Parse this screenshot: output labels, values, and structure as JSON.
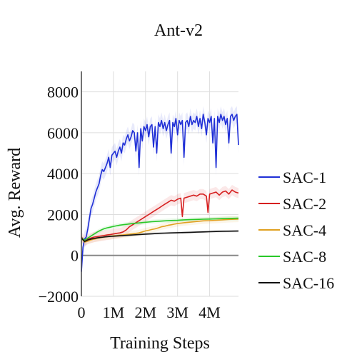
{
  "chart_data": {
    "type": "line",
    "title": "Ant-v2",
    "xlabel": "Training Steps",
    "ylabel": "Avg. Reward",
    "xlim": [
      0,
      4900000
    ],
    "ylim": [
      -2000,
      9000
    ],
    "grid": true,
    "legend_position": "right",
    "x_ticks": [
      {
        "value": 0,
        "label": "0"
      },
      {
        "value": 1000000,
        "label": "1M"
      },
      {
        "value": 2000000,
        "label": "2M"
      },
      {
        "value": 3000000,
        "label": "3M"
      },
      {
        "value": 4000000,
        "label": "4M"
      }
    ],
    "y_ticks": [
      {
        "value": -2000,
        "label": "−2000"
      },
      {
        "value": 0,
        "label": "0"
      },
      {
        "value": 2000,
        "label": "2000"
      },
      {
        "value": 4000,
        "label": "4000"
      },
      {
        "value": 6000,
        "label": "6000"
      },
      {
        "value": 8000,
        "label": "8000"
      }
    ],
    "series": [
      {
        "name": "SAC-1",
        "color": "#1f2fd6",
        "band": 400,
        "points": [
          [
            0,
            -800
          ],
          [
            50000,
            400
          ],
          [
            100000,
            800
          ],
          [
            150000,
            900
          ],
          [
            200000,
            1300
          ],
          [
            250000,
            1800
          ],
          [
            300000,
            2300
          ],
          [
            350000,
            2500
          ],
          [
            400000,
            2800
          ],
          [
            450000,
            3100
          ],
          [
            500000,
            3300
          ],
          [
            550000,
            3500
          ],
          [
            600000,
            3900
          ],
          [
            650000,
            4200
          ],
          [
            700000,
            4100
          ],
          [
            750000,
            4300
          ],
          [
            800000,
            4500
          ],
          [
            850000,
            4800
          ],
          [
            900000,
            4300
          ],
          [
            950000,
            4900
          ],
          [
            1000000,
            5000
          ],
          [
            1050000,
            5100
          ],
          [
            1100000,
            4800
          ],
          [
            1150000,
            5100
          ],
          [
            1200000,
            5300
          ],
          [
            1250000,
            5000
          ],
          [
            1300000,
            5500
          ],
          [
            1350000,
            5400
          ],
          [
            1400000,
            5700
          ],
          [
            1450000,
            5900
          ],
          [
            1500000,
            5600
          ],
          [
            1550000,
            5800
          ],
          [
            1600000,
            6100
          ],
          [
            1650000,
            6000
          ],
          [
            1700000,
            5100
          ],
          [
            1750000,
            6000
          ],
          [
            1800000,
            4300
          ],
          [
            1850000,
            6200
          ],
          [
            1900000,
            5600
          ],
          [
            1950000,
            6300
          ],
          [
            2000000,
            6100
          ],
          [
            2050000,
            6400
          ],
          [
            2100000,
            5800
          ],
          [
            2150000,
            6300
          ],
          [
            2200000,
            6400
          ],
          [
            2250000,
            5300
          ],
          [
            2300000,
            6300
          ],
          [
            2350000,
            5000
          ],
          [
            2400000,
            6500
          ],
          [
            2450000,
            6300
          ],
          [
            2500000,
            6600
          ],
          [
            2550000,
            6200
          ],
          [
            2600000,
            6500
          ],
          [
            2650000,
            6100
          ],
          [
            2700000,
            6400
          ],
          [
            2750000,
            6600
          ],
          [
            2800000,
            5000
          ],
          [
            2850000,
            6500
          ],
          [
            2900000,
            6300
          ],
          [
            2950000,
            6700
          ],
          [
            3000000,
            5900
          ],
          [
            3050000,
            6600
          ],
          [
            3100000,
            6400
          ],
          [
            3150000,
            6600
          ],
          [
            3200000,
            4800
          ],
          [
            3250000,
            6500
          ],
          [
            3300000,
            6600
          ],
          [
            3350000,
            6300
          ],
          [
            3400000,
            6800
          ],
          [
            3450000,
            6400
          ],
          [
            3500000,
            6600
          ],
          [
            3550000,
            6500
          ],
          [
            3600000,
            6800
          ],
          [
            3650000,
            6300
          ],
          [
            3700000,
            6700
          ],
          [
            3750000,
            6200
          ],
          [
            3800000,
            6900
          ],
          [
            3850000,
            6500
          ],
          [
            3900000,
            5900
          ],
          [
            3950000,
            6700
          ],
          [
            4000000,
            6500
          ],
          [
            4050000,
            6800
          ],
          [
            4100000,
            5500
          ],
          [
            4150000,
            6700
          ],
          [
            4200000,
            4300
          ],
          [
            4250000,
            6800
          ],
          [
            4300000,
            6500
          ],
          [
            4350000,
            6900
          ],
          [
            4400000,
            6600
          ],
          [
            4450000,
            6800
          ],
          [
            4500000,
            6400
          ],
          [
            4550000,
            6700
          ],
          [
            4600000,
            5500
          ],
          [
            4650000,
            6800
          ],
          [
            4700000,
            6900
          ],
          [
            4750000,
            6600
          ],
          [
            4800000,
            6800
          ],
          [
            4850000,
            6900
          ],
          [
            4900000,
            5400
          ]
        ]
      },
      {
        "name": "SAC-2",
        "color": "#d62020",
        "band": 250,
        "points": [
          [
            0,
            900
          ],
          [
            100000,
            700
          ],
          [
            200000,
            800
          ],
          [
            300000,
            850
          ],
          [
            400000,
            900
          ],
          [
            500000,
            920
          ],
          [
            600000,
            950
          ],
          [
            700000,
            970
          ],
          [
            800000,
            1000
          ],
          [
            900000,
            1020
          ],
          [
            1000000,
            1050
          ],
          [
            1100000,
            1080
          ],
          [
            1200000,
            1100
          ],
          [
            1300000,
            1150
          ],
          [
            1400000,
            1250
          ],
          [
            1500000,
            1400
          ],
          [
            1600000,
            1500
          ],
          [
            1700000,
            1600
          ],
          [
            1800000,
            1700
          ],
          [
            1900000,
            1800
          ],
          [
            2000000,
            1900
          ],
          [
            2100000,
            2000
          ],
          [
            2200000,
            2100
          ],
          [
            2300000,
            2200
          ],
          [
            2400000,
            2300
          ],
          [
            2500000,
            2400
          ],
          [
            2600000,
            2500
          ],
          [
            2700000,
            2600
          ],
          [
            2800000,
            2700
          ],
          [
            2900000,
            2650
          ],
          [
            3000000,
            2750
          ],
          [
            3100000,
            2800
          ],
          [
            3150000,
            1900
          ],
          [
            3200000,
            2800
          ],
          [
            3300000,
            2850
          ],
          [
            3400000,
            2900
          ],
          [
            3500000,
            2950
          ],
          [
            3600000,
            2900
          ],
          [
            3700000,
            3000
          ],
          [
            3800000,
            3000
          ],
          [
            3900000,
            2900
          ],
          [
            3950000,
            2100
          ],
          [
            4000000,
            3000
          ],
          [
            4100000,
            3050
          ],
          [
            4200000,
            3100
          ],
          [
            4300000,
            2950
          ],
          [
            4400000,
            3100
          ],
          [
            4500000,
            3150
          ],
          [
            4600000,
            3000
          ],
          [
            4700000,
            3200
          ],
          [
            4800000,
            3100
          ],
          [
            4900000,
            3050
          ]
        ]
      },
      {
        "name": "SAC-4",
        "color": "#e0a020",
        "band": 150,
        "points": [
          [
            0,
            850
          ],
          [
            100000,
            650
          ],
          [
            200000,
            700
          ],
          [
            300000,
            760
          ],
          [
            400000,
            800
          ],
          [
            500000,
            840
          ],
          [
            600000,
            870
          ],
          [
            700000,
            900
          ],
          [
            800000,
            920
          ],
          [
            900000,
            940
          ],
          [
            1000000,
            960
          ],
          [
            1100000,
            970
          ],
          [
            1200000,
            990
          ],
          [
            1300000,
            1000
          ],
          [
            1400000,
            1020
          ],
          [
            1500000,
            1040
          ],
          [
            1600000,
            1060
          ],
          [
            1700000,
            1080
          ],
          [
            1800000,
            1100
          ],
          [
            1900000,
            1150
          ],
          [
            2000000,
            1200
          ],
          [
            2100000,
            1230
          ],
          [
            2200000,
            1270
          ],
          [
            2300000,
            1300
          ],
          [
            2400000,
            1350
          ],
          [
            2500000,
            1400
          ],
          [
            2600000,
            1430
          ],
          [
            2700000,
            1470
          ],
          [
            2800000,
            1500
          ],
          [
            2900000,
            1530
          ],
          [
            3000000,
            1560
          ],
          [
            3200000,
            1600
          ],
          [
            3400000,
            1630
          ],
          [
            3600000,
            1660
          ],
          [
            3800000,
            1690
          ],
          [
            4000000,
            1700
          ],
          [
            4200000,
            1720
          ],
          [
            4400000,
            1740
          ],
          [
            4600000,
            1760
          ],
          [
            4900000,
            1780
          ]
        ]
      },
      {
        "name": "SAC-8",
        "color": "#28c828",
        "band": 100,
        "points": [
          [
            0,
            850
          ],
          [
            100000,
            750
          ],
          [
            200000,
            850
          ],
          [
            300000,
            950
          ],
          [
            400000,
            1050
          ],
          [
            500000,
            1150
          ],
          [
            600000,
            1230
          ],
          [
            700000,
            1300
          ],
          [
            800000,
            1350
          ],
          [
            900000,
            1380
          ],
          [
            1000000,
            1420
          ],
          [
            1200000,
            1480
          ],
          [
            1400000,
            1520
          ],
          [
            1600000,
            1560
          ],
          [
            1800000,
            1590
          ],
          [
            2000000,
            1620
          ],
          [
            2200000,
            1650
          ],
          [
            2400000,
            1670
          ],
          [
            2600000,
            1690
          ],
          [
            2800000,
            1710
          ],
          [
            3000000,
            1720
          ],
          [
            3200000,
            1740
          ],
          [
            3400000,
            1750
          ],
          [
            3600000,
            1760
          ],
          [
            3800000,
            1770
          ],
          [
            4000000,
            1780
          ],
          [
            4200000,
            1790
          ],
          [
            4400000,
            1800
          ],
          [
            4600000,
            1810
          ],
          [
            4900000,
            1820
          ]
        ]
      },
      {
        "name": "SAC-16",
        "color": "#111111",
        "band": 60,
        "points": [
          [
            0,
            850
          ],
          [
            100000,
            680
          ],
          [
            200000,
            760
          ],
          [
            300000,
            800
          ],
          [
            400000,
            830
          ],
          [
            500000,
            860
          ],
          [
            600000,
            880
          ],
          [
            700000,
            900
          ],
          [
            800000,
            920
          ],
          [
            900000,
            930
          ],
          [
            1000000,
            940
          ],
          [
            1200000,
            960
          ],
          [
            1400000,
            980
          ],
          [
            1600000,
            1000
          ],
          [
            1800000,
            1020
          ],
          [
            2000000,
            1040
          ],
          [
            2200000,
            1060
          ],
          [
            2400000,
            1080
          ],
          [
            2600000,
            1090
          ],
          [
            2800000,
            1100
          ],
          [
            3000000,
            1110
          ],
          [
            3200000,
            1120
          ],
          [
            3400000,
            1130
          ],
          [
            3600000,
            1140
          ],
          [
            3800000,
            1150
          ],
          [
            4000000,
            1160
          ],
          [
            4200000,
            1170
          ],
          [
            4400000,
            1180
          ],
          [
            4600000,
            1185
          ],
          [
            4900000,
            1190
          ]
        ]
      }
    ]
  }
}
